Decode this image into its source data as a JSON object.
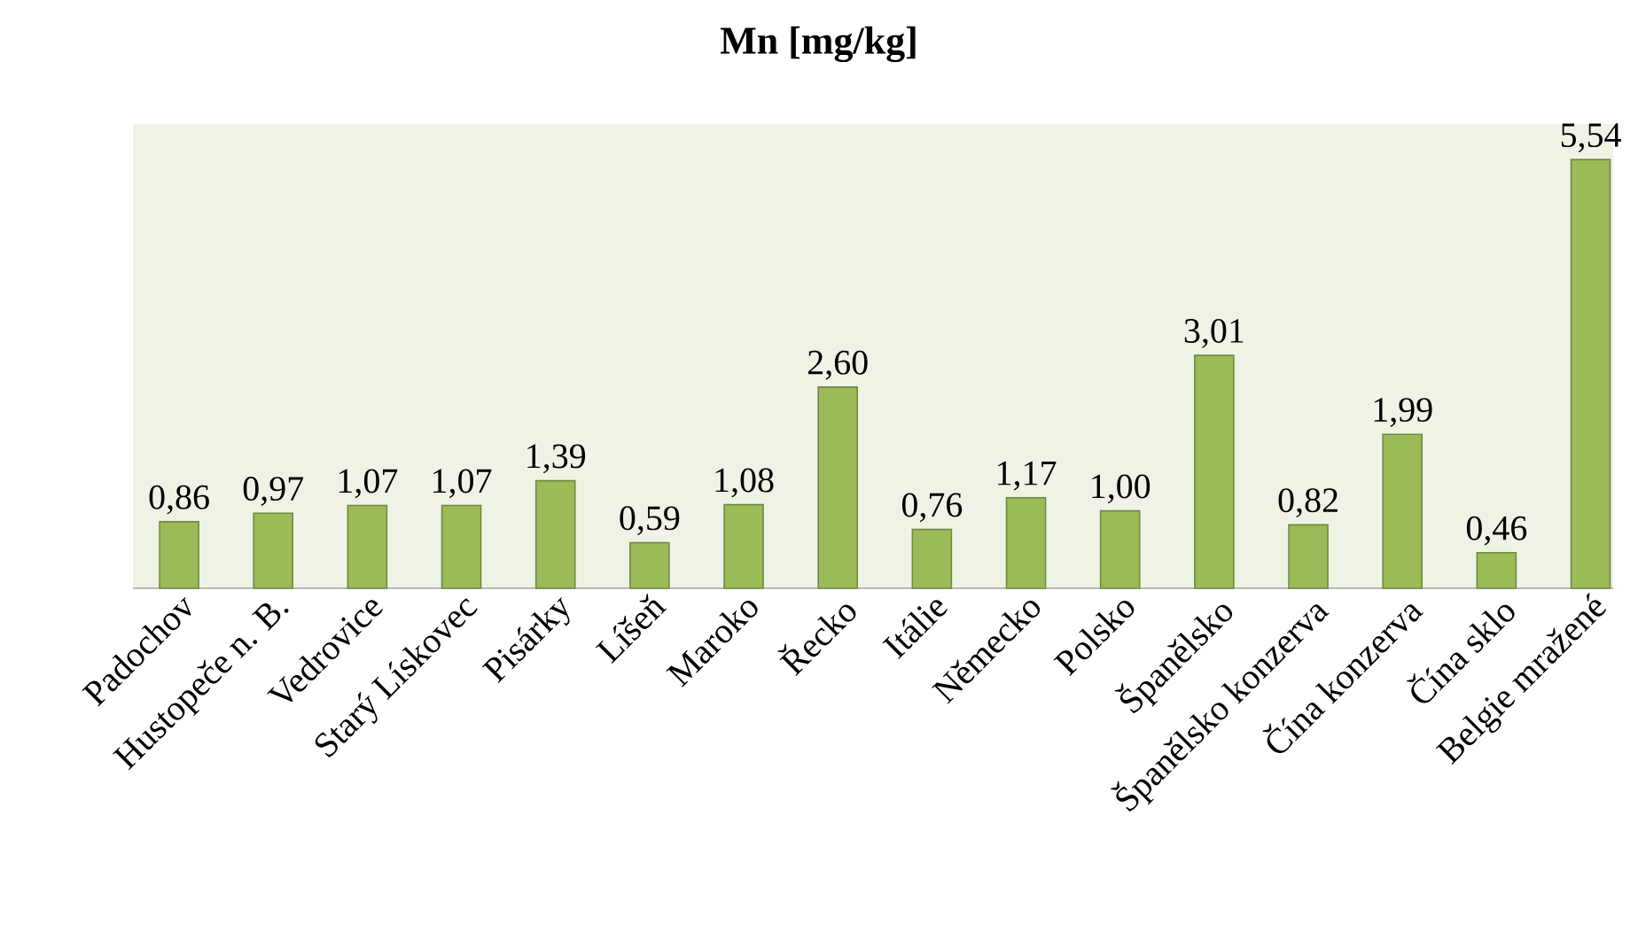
{
  "chart_data": {
    "type": "bar",
    "title": "Mn [mg/kg]",
    "categories": [
      "Padochov",
      "Hustopeče n. B.",
      "Vedrovice",
      "Starý Lískovec",
      "Pisárky",
      "Líšeň",
      "Maroko",
      "Řecko",
      "Itálie",
      "Německo",
      "Polsko",
      "Španělsko",
      "Španělsko konzerva",
      "Čína konzerva",
      "Čína sklo",
      "Belgie mražené"
    ],
    "values": [
      0.86,
      0.97,
      1.07,
      1.07,
      1.39,
      0.59,
      1.08,
      2.6,
      0.76,
      1.17,
      1.0,
      3.01,
      0.82,
      1.99,
      0.46,
      5.54
    ],
    "value_labels": [
      "0,86",
      "0,97",
      "1,07",
      "1,07",
      "1,39",
      "0,59",
      "1,08",
      "2,60",
      "0,76",
      "1,17",
      "1,00",
      "3,01",
      "0,82",
      "1,99",
      "0,46",
      "5,54"
    ],
    "color": "#9bbb59",
    "ylim": [
      0,
      6
    ]
  }
}
